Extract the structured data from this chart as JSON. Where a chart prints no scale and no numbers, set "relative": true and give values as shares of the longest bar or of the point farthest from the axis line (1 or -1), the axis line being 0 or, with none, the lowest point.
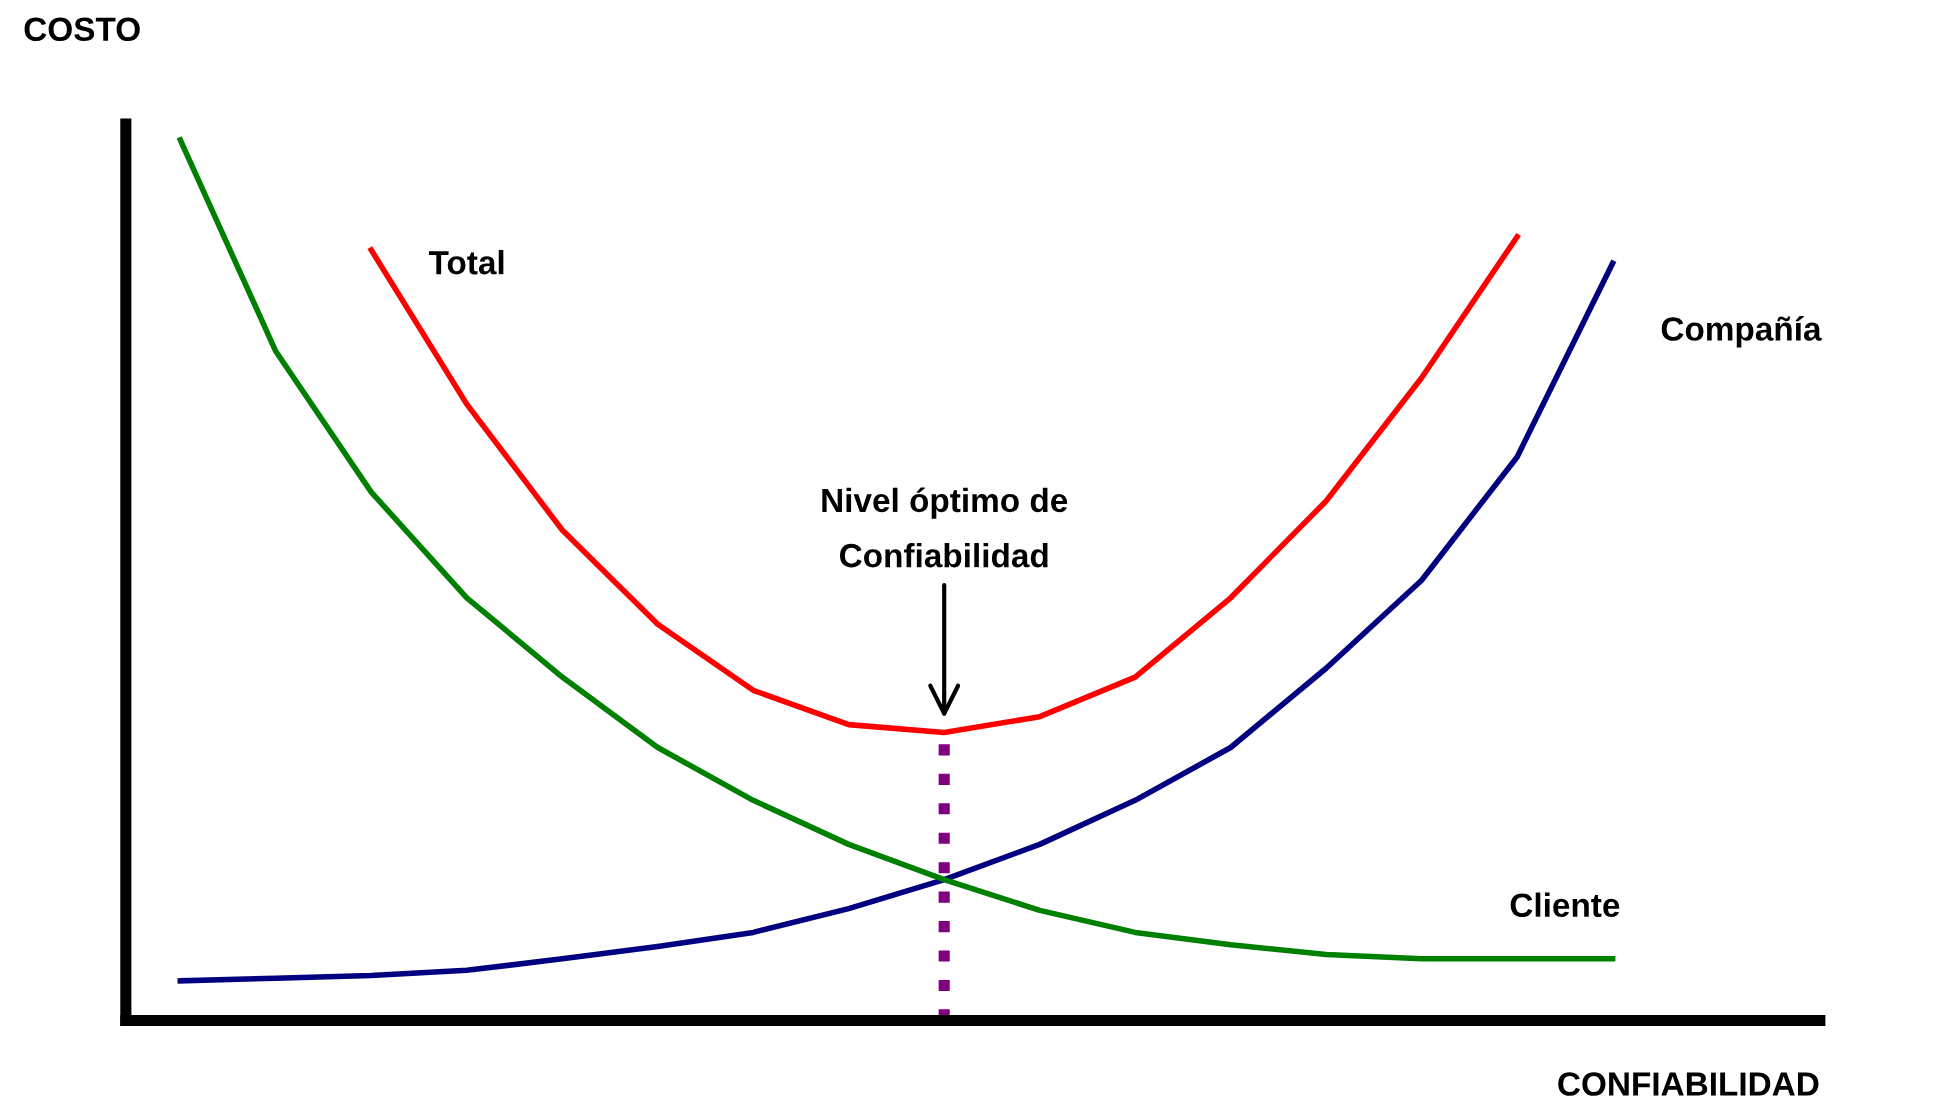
{
  "chart_data": {
    "type": "line",
    "relative": true,
    "xlabel": "CONFIABILIDAD",
    "ylabel": "COSTO",
    "legend": false,
    "marker": "none",
    "line_style": "solid",
    "categories": [
      null,
      null,
      null,
      null,
      null,
      null,
      null,
      null,
      null,
      null,
      null,
      null,
      null,
      null,
      null,
      null,
      null
    ],
    "series": [
      {
        "name": "Total",
        "color": "#ff0000",
        "values": [
          null,
          null,
          0.875,
          0.7,
          0.557,
          0.45,
          0.375,
          0.336,
          0.327,
          0.345,
          0.39,
          0.48,
          0.59,
          0.73,
          0.89,
          null,
          null
        ]
      },
      {
        "name": "Compañía",
        "color": "#000080",
        "values": [
          0.045,
          0.048,
          0.051,
          0.057,
          0.07,
          0.084,
          0.1,
          0.127,
          0.16,
          0.2,
          0.25,
          0.31,
          0.4,
          0.5,
          0.64,
          0.86,
          null
        ]
      },
      {
        "name": "Cliente",
        "color": "#008000",
        "values": [
          1.0,
          0.76,
          0.6,
          0.48,
          0.39,
          0.31,
          0.25,
          0.2,
          0.16,
          0.125,
          0.1,
          0.086,
          0.075,
          0.07,
          0.07,
          0.07,
          null
        ]
      }
    ],
    "annotations": [
      "Nivel óptimo de\nConfiabilidad"
    ]
  }
}
